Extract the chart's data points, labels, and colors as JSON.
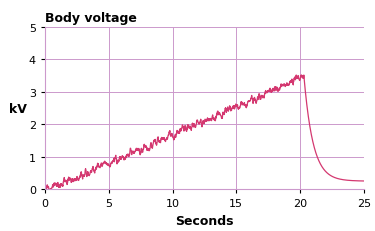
{
  "title": "Body voltage",
  "xlabel": "Seconds",
  "ylabel": "kV",
  "xlim": [
    0,
    25
  ],
  "ylim": [
    0,
    5
  ],
  "xticks": [
    0,
    5,
    10,
    15,
    20,
    25
  ],
  "yticks": [
    0,
    1,
    2,
    3,
    4,
    5
  ],
  "line_color": "#d43870",
  "grid_color": "#cc99cc",
  "background_color": "#ffffff",
  "title_fontsize": 9,
  "label_fontsize": 9,
  "tick_fontsize": 8,
  "rise_end": 20.3,
  "noise_amplitude": 0.18,
  "decay_rate": 1.4,
  "decay_end_val": 0.25
}
